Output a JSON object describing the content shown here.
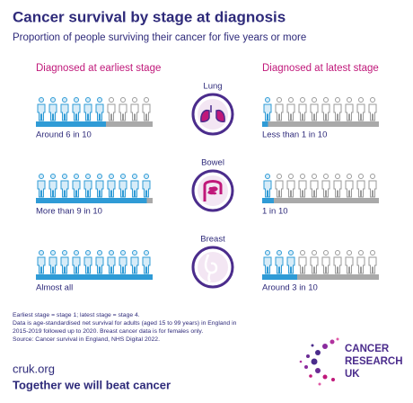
{
  "header": {
    "title": "Cancer survival by stage at diagnosis",
    "subtitle": "Proportion of people surviving their cancer for five years or more"
  },
  "columns": [
    "Diagnosed at earliest stage",
    "Diagnosed at latest stage"
  ],
  "rows": [
    {
      "name": "Lung",
      "earliest": {
        "label": "Around 6 in 10",
        "filled": 6
      },
      "latest": {
        "label": "Less than 1 in 10",
        "filled": 0.5
      }
    },
    {
      "name": "Bowel",
      "earliest": {
        "label": "More than 9 in 10",
        "filled": 9.5
      },
      "latest": {
        "label": "1 in 10",
        "filled": 1
      }
    },
    {
      "name": "Breast",
      "earliest": {
        "label": "Almost all",
        "filled": 10
      },
      "latest": {
        "label": "Around 3 in 10",
        "filled": 3
      }
    }
  ],
  "notes": [
    "Earliest stage = stage 1; latest stage = stage 4.",
    "Data is age-standardised net survival for adults (aged 15 to 99 years) in England in",
    "2015-2019 followed up to 2020. Breast cancer data is for females only.",
    "Source: Cancer survival in England, NHS Digital 2022."
  ],
  "footer": {
    "url": "cruk.org",
    "tagline": "Together we will beat cancer"
  },
  "logo": [
    "CANCER",
    "RESEARCH",
    "UK"
  ]
}
